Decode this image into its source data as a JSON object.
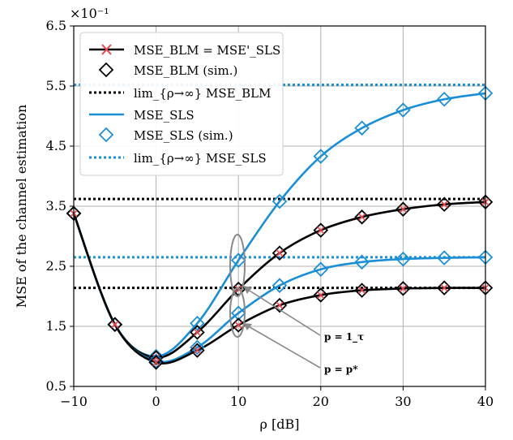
{
  "chart_data": {
    "type": "line",
    "xlabel": "ρ [dB]",
    "ylabel": "MSE of the channel estimation",
    "y_scale_label": "×10⁻¹",
    "xlim": [
      -10,
      40
    ],
    "ylim": [
      0.5,
      6.5
    ],
    "x_ticks": [
      -10,
      0,
      10,
      20,
      30,
      40
    ],
    "x_tick_labels": [
      "−10",
      "0",
      "10",
      "20",
      "30",
      "40"
    ],
    "y_ticks": [
      0.5,
      1.5,
      2.5,
      3.5,
      4.5,
      5.5,
      6.5
    ],
    "y_tick_labels": [
      "0.5",
      "1.5",
      "2.5",
      "3.5",
      "4.5",
      "5.5",
      "6.5"
    ],
    "grid": true,
    "legend_position": "top-left",
    "colors": {
      "black": "#000000",
      "blue": "#1a8fd6",
      "red": "#e8474c"
    },
    "legend": [
      "MSE_BLM = MSE'_SLS",
      "MSE_BLM (sim.)",
      "lim_{ρ→∞} MSE_BLM",
      "MSE_SLS",
      "MSE_SLS (sim.)",
      "lim_{ρ→∞} MSE_SLS"
    ],
    "series": [
      {
        "group": "p = 1_τ",
        "x": [
          -10,
          -5,
          0,
          5,
          10,
          15,
          20,
          25,
          30,
          35,
          40
        ],
        "blm": [
          3.38,
          1.53,
          0.98,
          1.4,
          2.12,
          2.72,
          3.1,
          3.32,
          3.45,
          3.53,
          3.57
        ],
        "sls": [
          3.38,
          1.53,
          1.0,
          1.55,
          2.6,
          3.58,
          4.33,
          4.8,
          5.1,
          5.28,
          5.38
        ],
        "blm_limit": 3.62,
        "sls_limit": 5.52
      },
      {
        "group": "p = p*",
        "x": [
          -10,
          -5,
          0,
          5,
          10,
          15,
          20,
          25,
          30,
          35,
          40
        ],
        "blm": [
          3.38,
          1.53,
          0.9,
          1.1,
          1.52,
          1.85,
          2.02,
          2.1,
          2.13,
          2.14,
          2.14
        ],
        "sls": [
          3.38,
          1.53,
          0.92,
          1.15,
          1.72,
          2.18,
          2.45,
          2.57,
          2.62,
          2.64,
          2.65
        ],
        "blm_limit": 2.14,
        "sls_limit": 2.65
      }
    ],
    "annotations": [
      "p = 1_τ",
      "p = p*"
    ]
  }
}
